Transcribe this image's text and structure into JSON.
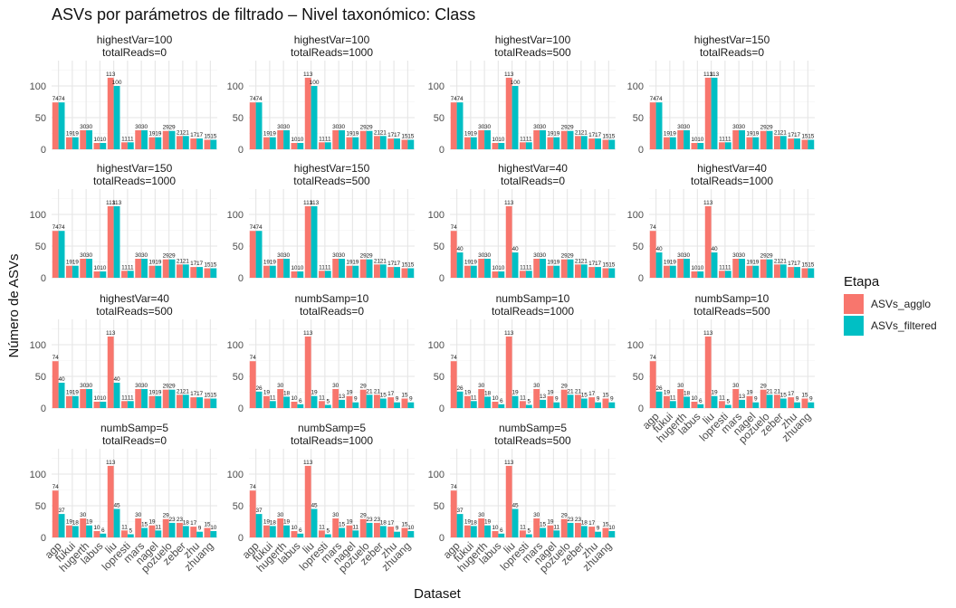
{
  "chart_data": {
    "type": "bar",
    "title": "ASVs por parámetros de filtrado – Nivel taxonómico: Class",
    "xlabel": "Dataset",
    "ylabel": "Número de ASVs",
    "ylim": [
      0,
      140
    ],
    "yticks": [
      0,
      50,
      100
    ],
    "grid": true,
    "legend": {
      "title": "Etapa",
      "placement": "right",
      "entries": [
        {
          "name": "ASVs_agglo",
          "color": "#F8766D"
        },
        {
          "name": "ASVs_filtered",
          "color": "#00BFC4"
        }
      ]
    },
    "categories": [
      "agp",
      "fukui",
      "hugerth",
      "labus",
      "liu",
      "lopresti",
      "mars",
      "nagel",
      "pozuelo",
      "zeber",
      "zhu",
      "zhuang"
    ],
    "panels": [
      {
        "strip": [
          "highestVar=100",
          "totalReads=0"
        ],
        "series": [
          {
            "name": "ASVs_agglo",
            "values": [
              74,
              19,
              30,
              10,
              113,
              11,
              30,
              19,
              29,
              21,
              17,
              15
            ]
          },
          {
            "name": "ASVs_filtered",
            "values": [
              74,
              19,
              30,
              10,
              100,
              11,
              30,
              19,
              29,
              21,
              17,
              15
            ]
          }
        ]
      },
      {
        "strip": [
          "highestVar=100",
          "totalReads=1000"
        ],
        "series": [
          {
            "name": "ASVs_agglo",
            "values": [
              74,
              19,
              30,
              10,
              113,
              11,
              30,
              19,
              29,
              21,
              17,
              15
            ]
          },
          {
            "name": "ASVs_filtered",
            "values": [
              74,
              19,
              30,
              10,
              100,
              11,
              30,
              19,
              29,
              21,
              17,
              15
            ]
          }
        ]
      },
      {
        "strip": [
          "highestVar=100",
          "totalReads=500"
        ],
        "series": [
          {
            "name": "ASVs_agglo",
            "values": [
              74,
              19,
              30,
              10,
              113,
              11,
              30,
              19,
              29,
              21,
              17,
              15
            ]
          },
          {
            "name": "ASVs_filtered",
            "values": [
              74,
              19,
              30,
              10,
              100,
              11,
              30,
              19,
              29,
              21,
              17,
              15
            ]
          }
        ]
      },
      {
        "strip": [
          "highestVar=150",
          "totalReads=0"
        ],
        "series": [
          {
            "name": "ASVs_agglo",
            "values": [
              74,
              19,
              30,
              10,
              113,
              11,
              30,
              19,
              29,
              21,
              17,
              15
            ]
          },
          {
            "name": "ASVs_filtered",
            "values": [
              74,
              19,
              30,
              10,
              113,
              11,
              30,
              19,
              29,
              21,
              17,
              15
            ]
          }
        ]
      },
      {
        "strip": [
          "highestVar=150",
          "totalReads=1000"
        ],
        "series": [
          {
            "name": "ASVs_agglo",
            "values": [
              74,
              19,
              30,
              10,
              113,
              11,
              30,
              19,
              29,
              21,
              17,
              15
            ]
          },
          {
            "name": "ASVs_filtered",
            "values": [
              74,
              19,
              30,
              10,
              113,
              11,
              30,
              19,
              29,
              21,
              17,
              15
            ]
          }
        ]
      },
      {
        "strip": [
          "highestVar=150",
          "totalReads=500"
        ],
        "series": [
          {
            "name": "ASVs_agglo",
            "values": [
              74,
              19,
              30,
              10,
              113,
              11,
              30,
              19,
              29,
              21,
              17,
              15
            ]
          },
          {
            "name": "ASVs_filtered",
            "values": [
              74,
              19,
              30,
              10,
              113,
              11,
              30,
              19,
              29,
              21,
              17,
              15
            ]
          }
        ]
      },
      {
        "strip": [
          "highestVar=40",
          "totalReads=0"
        ],
        "series": [
          {
            "name": "ASVs_agglo",
            "values": [
              74,
              19,
              30,
              10,
              113,
              11,
              30,
              19,
              29,
              21,
              17,
              15
            ]
          },
          {
            "name": "ASVs_filtered",
            "values": [
              40,
              19,
              30,
              10,
              40,
              11,
              30,
              19,
              29,
              21,
              17,
              15
            ]
          }
        ]
      },
      {
        "strip": [
          "highestVar=40",
          "totalReads=1000"
        ],
        "series": [
          {
            "name": "ASVs_agglo",
            "values": [
              74,
              19,
              30,
              10,
              113,
              11,
              30,
              19,
              29,
              21,
              17,
              15
            ]
          },
          {
            "name": "ASVs_filtered",
            "values": [
              40,
              19,
              30,
              10,
              40,
              11,
              30,
              19,
              29,
              21,
              17,
              15
            ]
          }
        ]
      },
      {
        "strip": [
          "highestVar=40",
          "totalReads=500"
        ],
        "series": [
          {
            "name": "ASVs_agglo",
            "values": [
              74,
              19,
              30,
              10,
              113,
              11,
              30,
              19,
              29,
              21,
              17,
              15
            ]
          },
          {
            "name": "ASVs_filtered",
            "values": [
              40,
              19,
              30,
              10,
              40,
              11,
              30,
              19,
              29,
              21,
              17,
              15
            ]
          }
        ]
      },
      {
        "strip": [
          "numbSamp=10",
          "totalReads=0"
        ],
        "series": [
          {
            "name": "ASVs_agglo",
            "values": [
              74,
              19,
              30,
              10,
              113,
              11,
              30,
              19,
              29,
              21,
              17,
              15
            ]
          },
          {
            "name": "ASVs_filtered",
            "values": [
              26,
              11,
              18,
              6,
              19,
              5,
              13,
              9,
              21,
              15,
              9,
              9
            ]
          }
        ]
      },
      {
        "strip": [
          "numbSamp=10",
          "totalReads=1000"
        ],
        "series": [
          {
            "name": "ASVs_agglo",
            "values": [
              74,
              19,
              30,
              10,
              113,
              11,
              30,
              19,
              29,
              21,
              17,
              15
            ]
          },
          {
            "name": "ASVs_filtered",
            "values": [
              26,
              11,
              18,
              6,
              19,
              5,
              13,
              9,
              21,
              15,
              9,
              9
            ]
          }
        ]
      },
      {
        "strip": [
          "numbSamp=10",
          "totalReads=500"
        ],
        "series": [
          {
            "name": "ASVs_agglo",
            "values": [
              74,
              19,
              30,
              10,
              113,
              11,
              30,
              19,
              29,
              21,
              17,
              15
            ]
          },
          {
            "name": "ASVs_filtered",
            "values": [
              26,
              11,
              18,
              6,
              19,
              5,
              13,
              9,
              21,
              15,
              9,
              9
            ]
          }
        ]
      },
      {
        "strip": [
          "numbSamp=5",
          "totalReads=0"
        ],
        "series": [
          {
            "name": "ASVs_agglo",
            "values": [
              74,
              19,
              30,
              10,
              113,
              11,
              30,
              19,
              29,
              23,
              17,
              15
            ]
          },
          {
            "name": "ASVs_filtered",
            "values": [
              37,
              18,
              19,
              6,
              45,
              5,
              15,
              11,
              23,
              18,
              9,
              10
            ]
          }
        ]
      },
      {
        "strip": [
          "numbSamp=5",
          "totalReads=1000"
        ],
        "series": [
          {
            "name": "ASVs_agglo",
            "values": [
              74,
              19,
              30,
              10,
              113,
              11,
              30,
              19,
              29,
              23,
              17,
              15
            ]
          },
          {
            "name": "ASVs_filtered",
            "values": [
              37,
              18,
              19,
              6,
              45,
              5,
              15,
              11,
              23,
              18,
              9,
              10
            ]
          }
        ]
      },
      {
        "strip": [
          "numbSamp=5",
          "totalReads=500"
        ],
        "series": [
          {
            "name": "ASVs_agglo",
            "values": [
              74,
              19,
              30,
              10,
              113,
              11,
              30,
              19,
              29,
              23,
              17,
              15
            ]
          },
          {
            "name": "ASVs_filtered",
            "values": [
              37,
              18,
              19,
              6,
              45,
              5,
              15,
              11,
              23,
              18,
              9,
              10
            ]
          }
        ]
      }
    ]
  }
}
